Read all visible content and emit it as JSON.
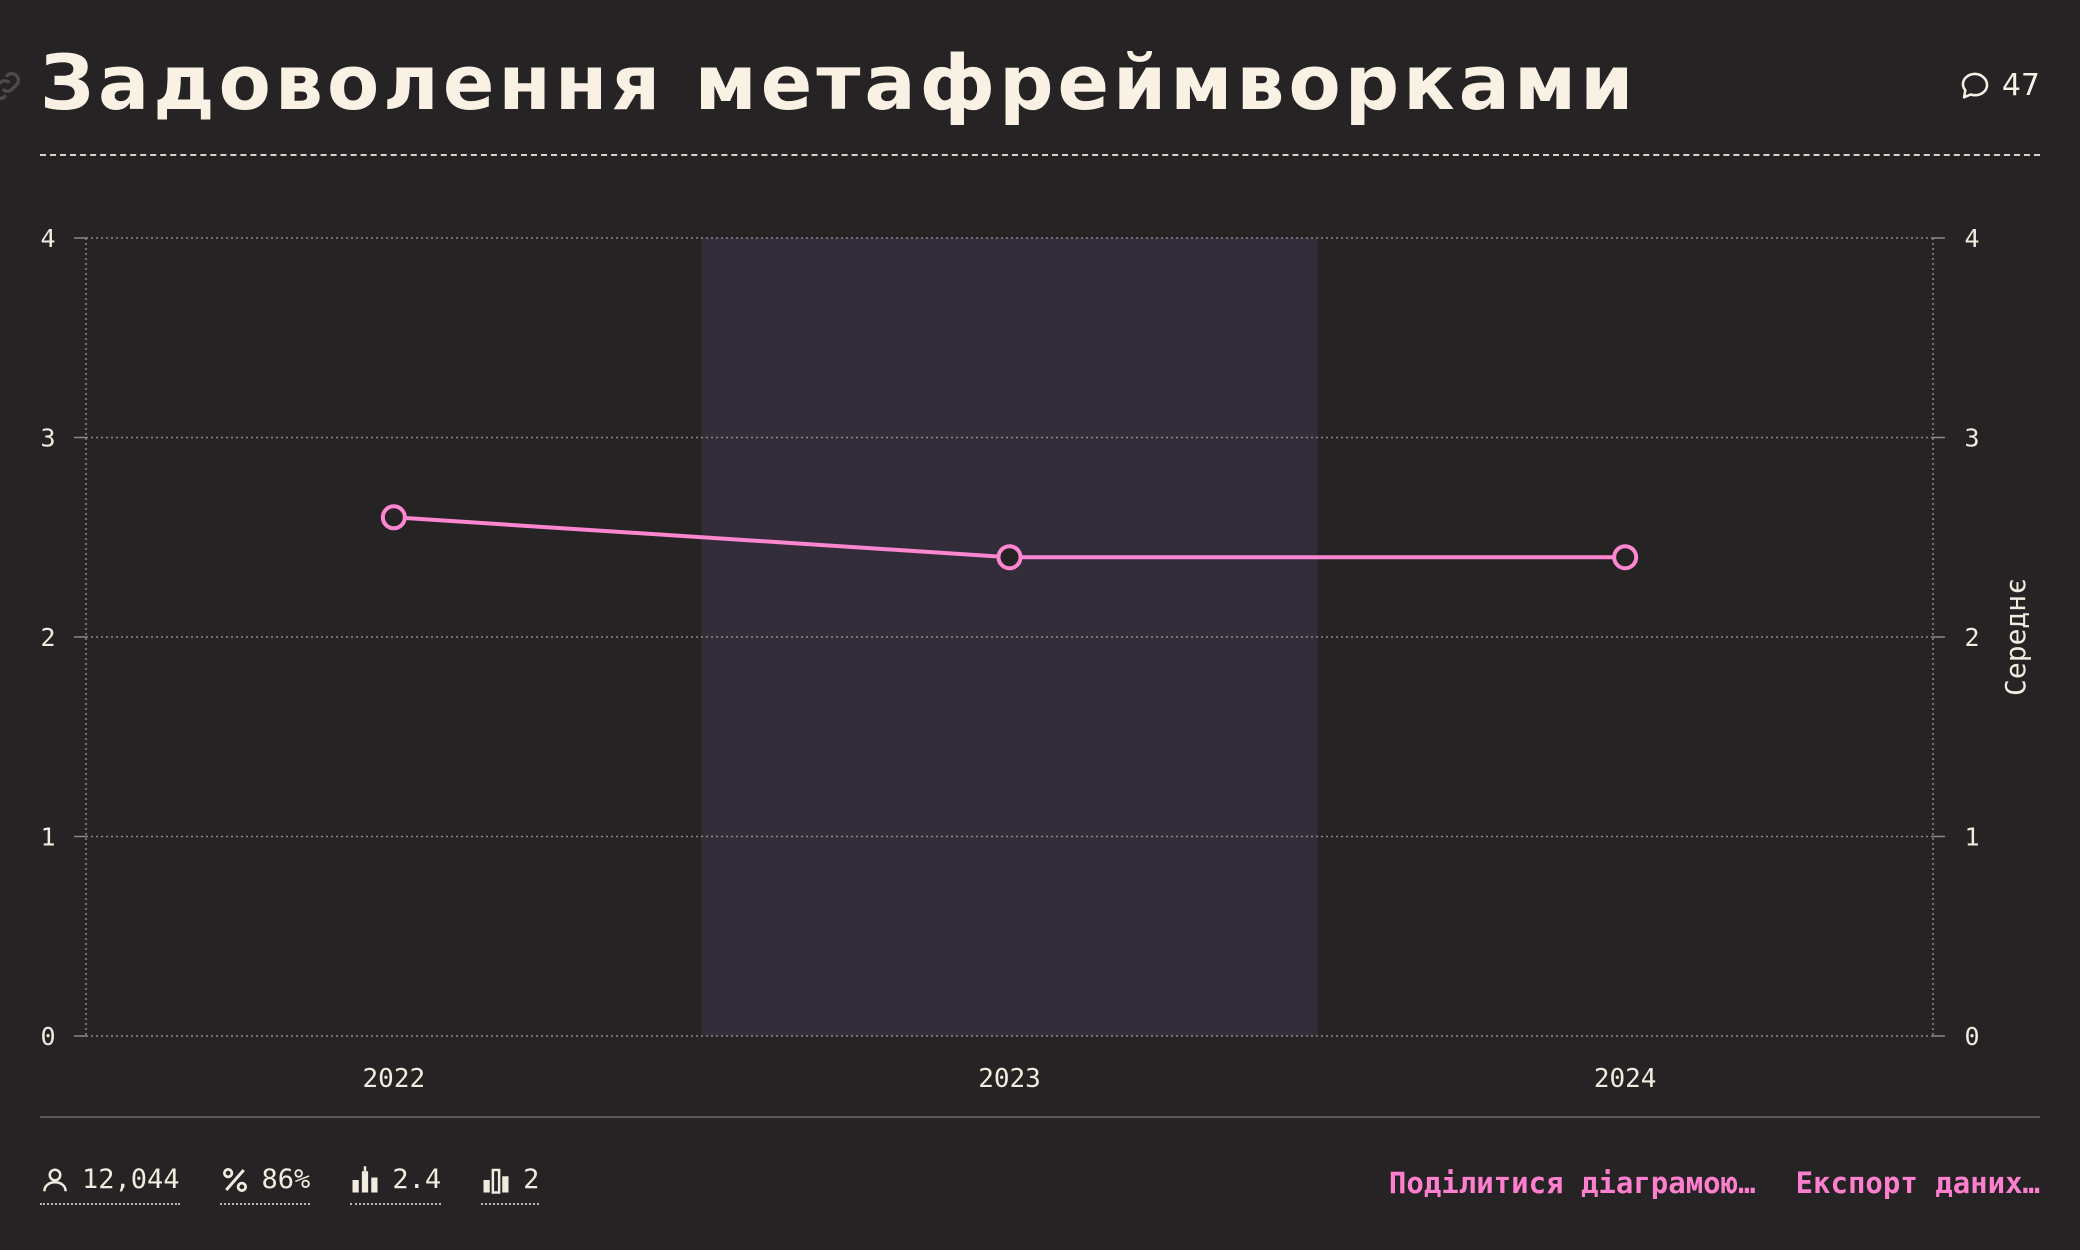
{
  "header": {
    "title": "Задоволення метафреймворками",
    "comment_count": "47"
  },
  "colors": {
    "background": "#262324",
    "highlight_band": "#322d39",
    "series": "#ff86d1",
    "action_link": "#ff7fcf"
  },
  "chart_data": {
    "type": "line",
    "x": [
      "2022",
      "2023",
      "2024"
    ],
    "series": [
      {
        "values": [
          2.6,
          2.4,
          2.4
        ]
      }
    ],
    "ylim": [
      0,
      4
    ],
    "yticks": [
      "0",
      "1",
      "2",
      "3",
      "4"
    ],
    "ylabel_right": "Середнє",
    "highlighted_category": "2023",
    "grid": true
  },
  "footer": {
    "stats": [
      {
        "icon": "user-icon",
        "value": "12,044"
      },
      {
        "icon": "percent-icon",
        "value": "86%"
      },
      {
        "icon": "average-bars-icon",
        "value": "2.4"
      },
      {
        "icon": "median-bars-icon",
        "value": "2"
      }
    ],
    "actions": {
      "share": "Поділитися діаграмою…",
      "export": "Експорт даних…"
    }
  }
}
